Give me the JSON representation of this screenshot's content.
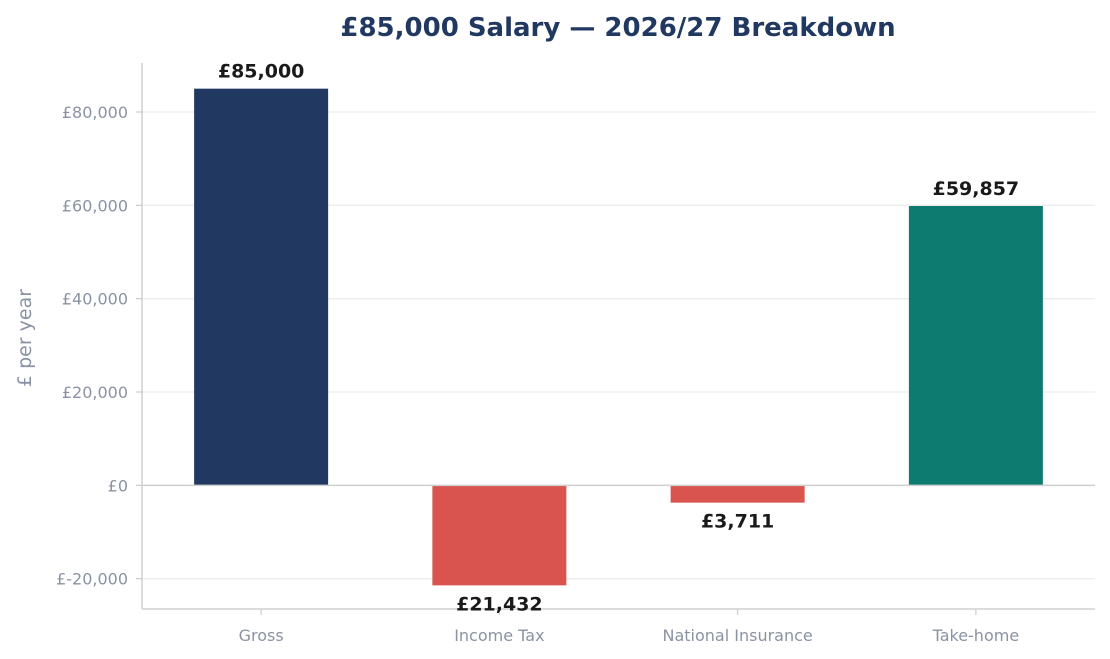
{
  "chart_data": {
    "type": "bar",
    "title": "£85,000 Salary — 2026/27 Breakdown",
    "xlabel": "",
    "ylabel": "£ per year",
    "categories": [
      "Gross",
      "Income Tax",
      "National Insurance",
      "Take-home"
    ],
    "values": [
      85000,
      -21432,
      -3711,
      59857
    ],
    "data_labels": [
      "£85,000",
      "£21,432",
      "£3,711",
      "£59,857"
    ],
    "yticks": [
      -20000,
      0,
      20000,
      40000,
      60000,
      80000
    ],
    "ytick_labels": [
      "£-20,000",
      "£0",
      "£20,000",
      "£40,000",
      "£60,000",
      "£80,000"
    ],
    "ylim": [
      -26500,
      90500
    ],
    "grid": true,
    "colors": {
      "gross": "#213860",
      "deduction": "#d9534f",
      "takehome": "#0e7b70",
      "title": "#213860",
      "grid": "#ececec",
      "axis": "#d0d0d0",
      "tick_text": "#8a93a3"
    }
  }
}
